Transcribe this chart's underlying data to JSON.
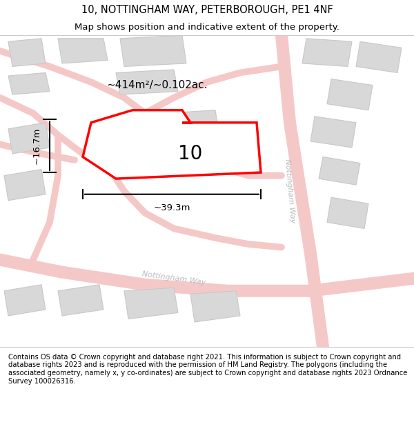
{
  "title_line1": "10, NOTTINGHAM WAY, PETERBOROUGH, PE1 4NF",
  "title_line2": "Map shows position and indicative extent of the property.",
  "footer_text": "Contains OS data © Crown copyright and database right 2021. This information is subject to Crown copyright and database rights 2023 and is reproduced with the permission of HM Land Registry. The polygons (including the associated geometry, namely x, y co-ordinates) are subject to Crown copyright and database rights 2023 Ordnance Survey 100026316.",
  "area_label": "~414m²/~0.102ac.",
  "width_label": "~39.3m",
  "height_label": "~16.7m",
  "property_number": "10",
  "map_bg_color": "#ffffff",
  "road_color_fill": "#f5c8c8",
  "road_color_edge": "#e8a0a0",
  "building_fill": "#d8d8d8",
  "building_edge": "#c8c8c8",
  "highlight_fill": "#ffffff",
  "highlight_edge": "#ff0000",
  "road_label_color": "#bbbbbb",
  "dim_line_color": "#000000",
  "title_fontsize": 10.5,
  "subtitle_fontsize": 9.5,
  "footer_fontsize": 7.2,
  "prop_label_fontsize": 20,
  "area_label_fontsize": 11,
  "dim_label_fontsize": 9.5
}
